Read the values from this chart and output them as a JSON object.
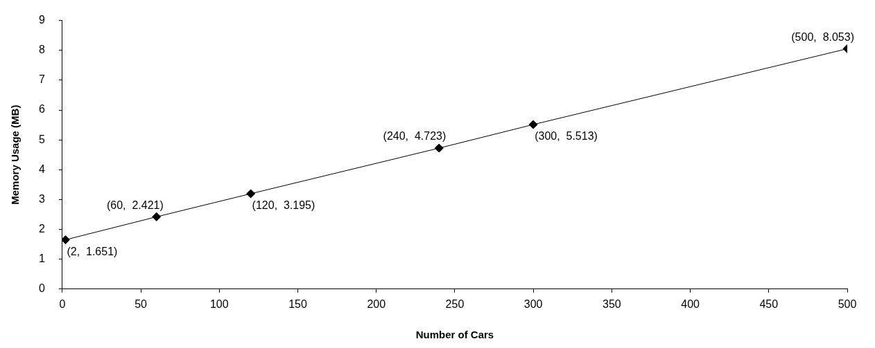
{
  "chart_data": {
    "type": "line",
    "xlabel": "Number of Cars",
    "ylabel": "Memory Usage (MB)",
    "x": [
      2,
      60,
      120,
      240,
      300,
      500
    ],
    "series": [
      {
        "color": "#000000",
        "values": [
          1.651,
          2.421,
          3.195,
          4.723,
          5.513,
          8.053
        ],
        "value_labels": [
          "(2,  1.651)",
          "(60,  2.421)",
          "(120,  3.195)",
          "(240,  4.723)",
          "(300,  5.513)",
          "(500,  8.053)"
        ]
      }
    ],
    "xlim": [
      0,
      500
    ],
    "xticks": [
      0,
      50,
      100,
      150,
      200,
      250,
      300,
      350,
      400,
      450,
      500
    ],
    "ylim": [
      0,
      9
    ],
    "yticks": [
      0,
      1,
      2,
      3,
      4,
      5,
      6,
      7,
      8,
      9
    ],
    "grid": false,
    "legend": false,
    "marker": "diamond",
    "line_style": "solid"
  }
}
